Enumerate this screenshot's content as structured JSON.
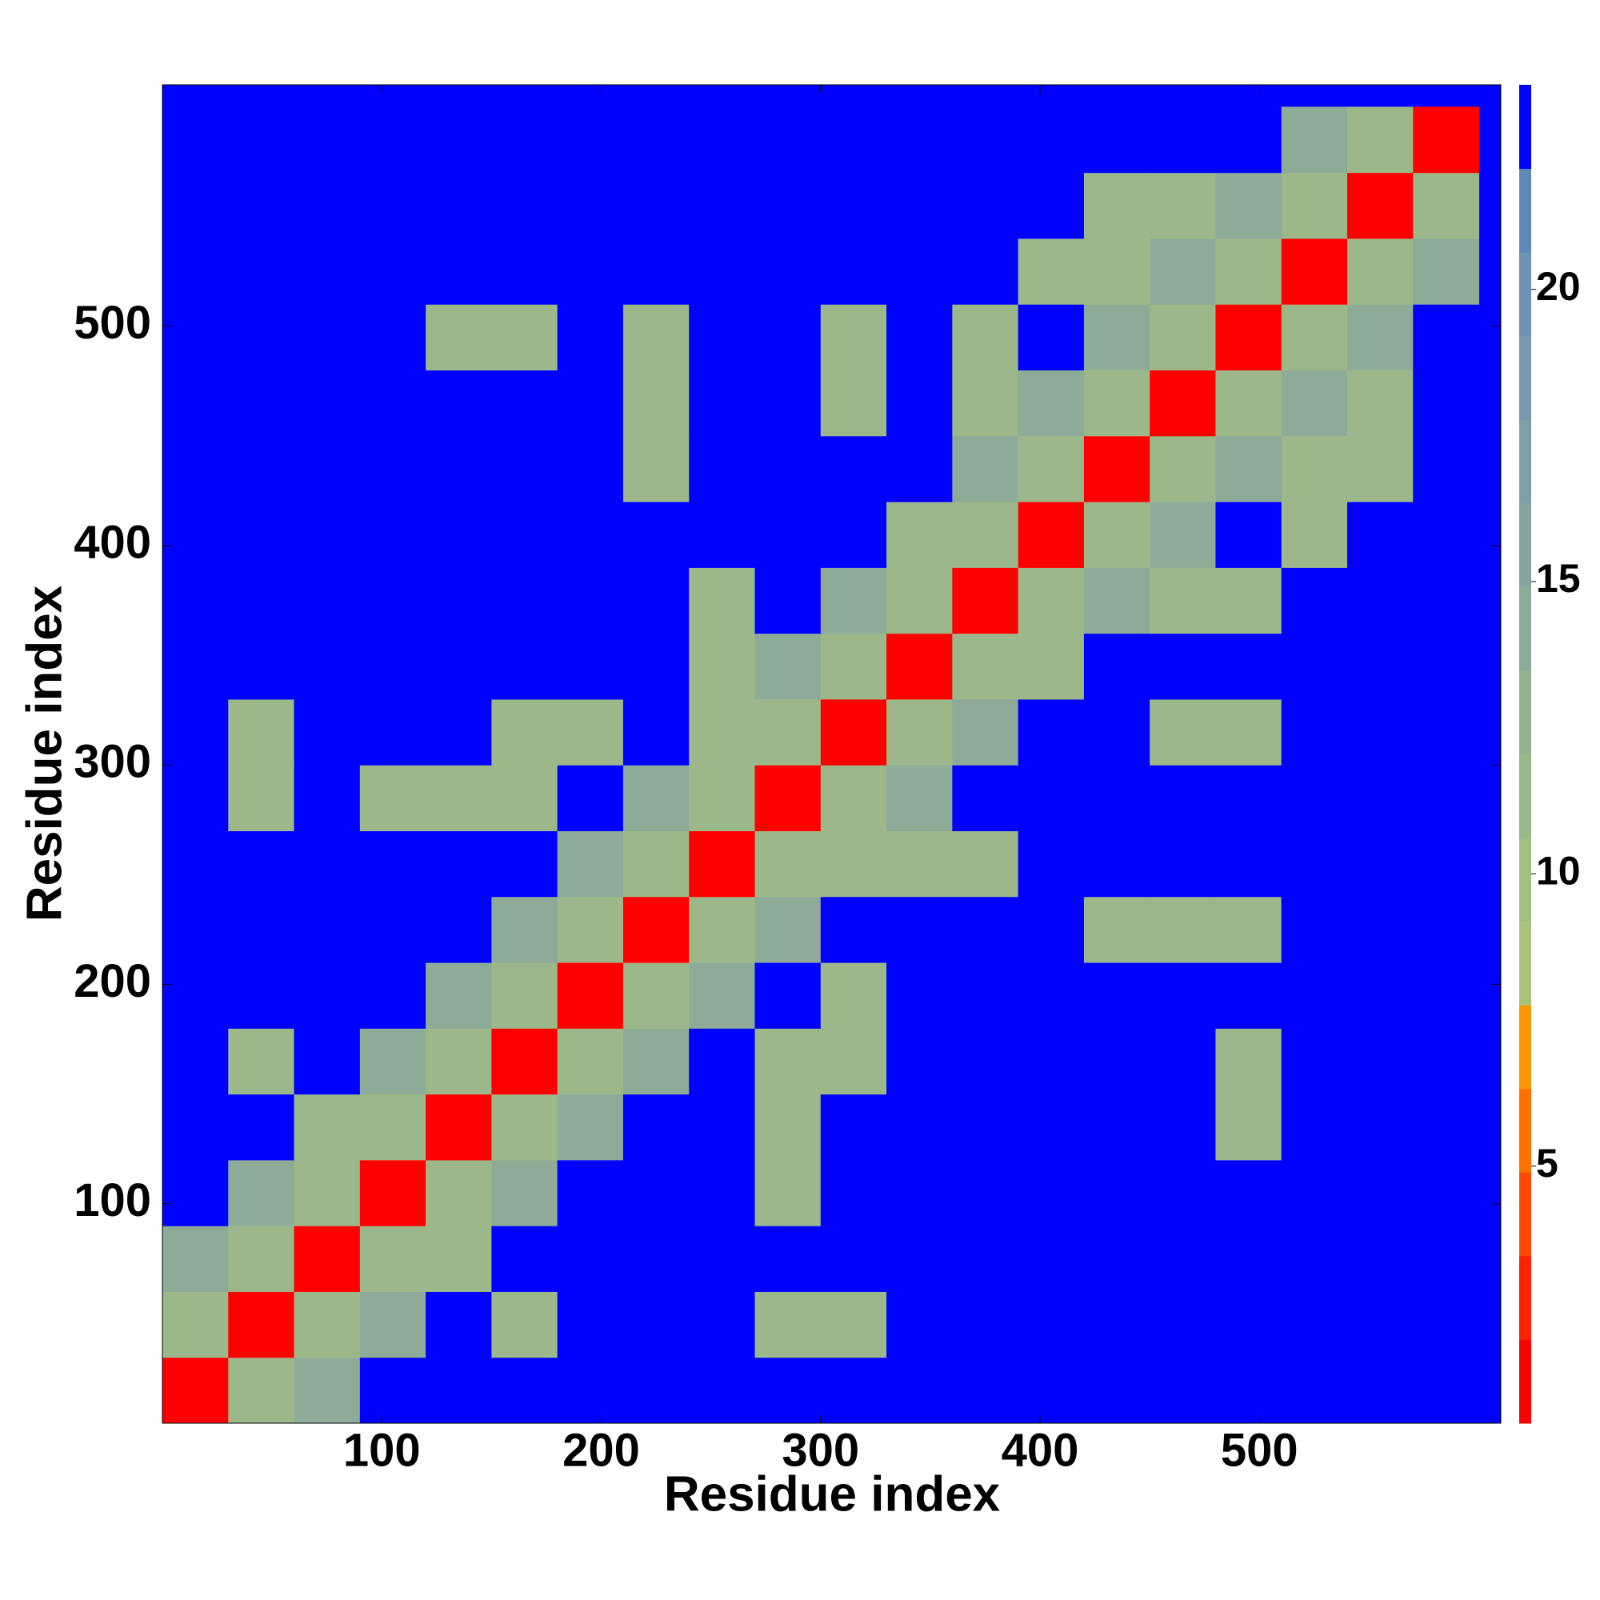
{
  "chart_data": {
    "type": "heatmap",
    "xlabel": "Residue index",
    "ylabel": "Residue index",
    "x": [
      15,
      45,
      75,
      105,
      135,
      165,
      195,
      225,
      255,
      285,
      315,
      345,
      375,
      405,
      435,
      465,
      495,
      525,
      555,
      585
    ],
    "y": [
      15,
      45,
      75,
      105,
      135,
      165,
      195,
      225,
      255,
      285,
      315,
      345,
      375,
      405,
      435,
      465,
      495,
      525,
      555,
      585
    ],
    "values": [
      [
        2,
        11,
        14,
        23,
        23,
        23,
        23,
        23,
        23,
        23,
        23,
        23,
        23,
        23,
        23,
        23,
        23,
        23,
        23,
        23
      ],
      [
        11,
        2,
        11,
        14,
        23,
        12,
        23,
        23,
        23,
        12,
        12,
        23,
        23,
        23,
        23,
        23,
        23,
        23,
        23,
        23
      ],
      [
        14,
        11,
        2,
        11,
        12,
        23,
        23,
        23,
        23,
        23,
        23,
        23,
        23,
        23,
        23,
        23,
        23,
        23,
        23,
        23
      ],
      [
        23,
        14,
        11,
        2,
        11,
        14,
        23,
        23,
        23,
        12,
        23,
        23,
        23,
        23,
        23,
        23,
        23,
        23,
        23,
        23
      ],
      [
        23,
        23,
        12,
        11,
        2,
        11,
        14,
        23,
        23,
        12,
        23,
        23,
        23,
        23,
        23,
        23,
        12,
        23,
        23,
        23
      ],
      [
        23,
        12,
        23,
        14,
        11,
        2,
        11,
        14,
        23,
        12,
        12,
        23,
        23,
        23,
        23,
        23,
        12,
        23,
        23,
        23
      ],
      [
        23,
        23,
        23,
        23,
        14,
        11,
        2,
        11,
        14,
        23,
        12,
        23,
        23,
        23,
        23,
        23,
        23,
        23,
        23,
        23
      ],
      [
        23,
        23,
        23,
        23,
        23,
        14,
        11,
        2,
        11,
        14,
        23,
        23,
        23,
        23,
        12,
        12,
        12,
        23,
        23,
        23
      ],
      [
        23,
        23,
        23,
        23,
        23,
        23,
        14,
        11,
        2,
        11,
        12,
        12,
        12,
        23,
        23,
        23,
        23,
        23,
        23,
        23
      ],
      [
        23,
        12,
        23,
        12,
        12,
        12,
        23,
        14,
        11,
        2,
        11,
        14,
        23,
        23,
        23,
        23,
        23,
        23,
        23,
        23
      ],
      [
        23,
        12,
        23,
        23,
        23,
        12,
        12,
        23,
        12,
        11,
        2,
        11,
        14,
        23,
        23,
        12,
        12,
        23,
        23,
        23
      ],
      [
        23,
        23,
        23,
        23,
        23,
        23,
        23,
        23,
        12,
        14,
        11,
        2,
        11,
        12,
        23,
        23,
        23,
        23,
        23,
        23
      ],
      [
        23,
        23,
        23,
        23,
        23,
        23,
        23,
        23,
        12,
        23,
        14,
        11,
        2,
        11,
        14,
        12,
        12,
        23,
        23,
        23
      ],
      [
        23,
        23,
        23,
        23,
        23,
        23,
        23,
        23,
        23,
        23,
        23,
        12,
        11,
        2,
        11,
        14,
        23,
        12,
        23,
        23
      ],
      [
        23,
        23,
        23,
        23,
        23,
        23,
        23,
        12,
        23,
        23,
        23,
        23,
        14,
        11,
        2,
        11,
        14,
        12,
        12,
        23
      ],
      [
        23,
        23,
        23,
        23,
        23,
        23,
        23,
        12,
        23,
        23,
        12,
        23,
        12,
        14,
        11,
        2,
        11,
        14,
        12,
        23
      ],
      [
        23,
        23,
        23,
        23,
        12,
        12,
        23,
        12,
        23,
        23,
        12,
        23,
        12,
        23,
        14,
        11,
        2,
        11,
        14,
        23
      ],
      [
        23,
        23,
        23,
        23,
        23,
        23,
        23,
        23,
        23,
        23,
        23,
        23,
        23,
        12,
        12,
        14,
        11,
        2,
        11,
        14
      ],
      [
        23,
        23,
        23,
        23,
        23,
        23,
        23,
        23,
        23,
        23,
        23,
        23,
        23,
        23,
        12,
        12,
        14,
        11,
        2,
        11
      ],
      [
        23,
        23,
        23,
        23,
        23,
        23,
        23,
        23,
        23,
        23,
        23,
        23,
        23,
        23,
        23,
        23,
        23,
        14,
        11,
        2
      ]
    ],
    "xlim": [
      0,
      610
    ],
    "ylim": [
      0,
      610
    ],
    "xticks": [
      100,
      200,
      300,
      400,
      500
    ],
    "yticks": [
      100,
      200,
      300,
      400,
      500
    ],
    "colorbar": {
      "zlim": [
        0.6,
        23.5
      ],
      "ticks": [
        5,
        10,
        15,
        20
      ],
      "colors": [
        "#ff0000",
        "#ff2200",
        "#ff4a00",
        "#ff7000",
        "#ff9500",
        "#a9c47a",
        "#a3be82",
        "#9cb88a",
        "#95b291",
        "#8eab98",
        "#86a49f",
        "#7f9ea6",
        "#7898ad",
        "#6f91b3",
        "#5f88b8",
        "#0000ff"
      ]
    }
  }
}
